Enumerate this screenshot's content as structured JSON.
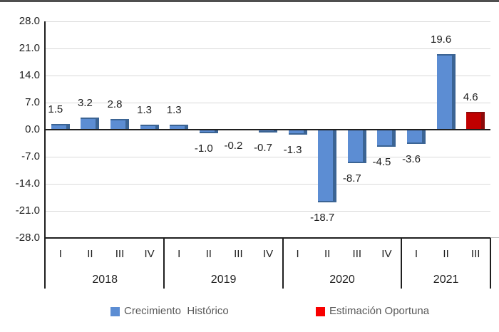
{
  "chart_data": {
    "type": "bar",
    "title": "",
    "xlabel": "",
    "ylabel": "",
    "ylim": [
      -28,
      28
    ],
    "ytick_interval": 7,
    "grid": true,
    "legend_position": "bottom",
    "y_axis": {
      "ticks": [
        {
          "value": 28,
          "label": "28.0"
        },
        {
          "value": 21,
          "label": "21.0"
        },
        {
          "value": 14,
          "label": "14.0"
        },
        {
          "value": 7,
          "label": "7.0"
        },
        {
          "value": 0,
          "label": "0.0"
        },
        {
          "value": -7,
          "label": "-7.0"
        },
        {
          "value": -14,
          "label": "-14.0"
        },
        {
          "value": -21,
          "label": "-21.0"
        },
        {
          "value": -28,
          "label": "-28.0"
        }
      ]
    },
    "groups": [
      {
        "year": "2018",
        "quarters": [
          "I",
          "II",
          "III",
          "IV"
        ]
      },
      {
        "year": "2019",
        "quarters": [
          "I",
          "II",
          "III",
          "IV"
        ]
      },
      {
        "year": "2020",
        "quarters": [
          "I",
          "II",
          "III",
          "IV"
        ]
      },
      {
        "year": "2021",
        "quarters": [
          "I",
          "II",
          "III"
        ]
      }
    ],
    "series": [
      {
        "name": "Crecimiento  Histórico",
        "color": "#5C8DD3",
        "edge_color": "#3B6494",
        "legend_color": "#5C8DD3"
      },
      {
        "name": "Estimación Oportuna",
        "color": "#C00000",
        "edge_color": "#8B0B0B",
        "legend_color": "#F80000"
      }
    ],
    "points": [
      {
        "year": "2018",
        "quarter": "I",
        "value": 1.5,
        "label": "1.5",
        "series": 0
      },
      {
        "year": "2018",
        "quarter": "II",
        "value": 3.2,
        "label": "3.2",
        "series": 0
      },
      {
        "year": "2018",
        "quarter": "III",
        "value": 2.8,
        "label": "2.8",
        "series": 0
      },
      {
        "year": "2018",
        "quarter": "IV",
        "value": 1.3,
        "label": "1.3",
        "series": 0
      },
      {
        "year": "2019",
        "quarter": "I",
        "value": 1.3,
        "label": "1.3",
        "series": 0
      },
      {
        "year": "2019",
        "quarter": "II",
        "value": -1.0,
        "label": "-1.0",
        "series": 0
      },
      {
        "year": "2019",
        "quarter": "III",
        "value": -0.2,
        "label": "-0.2",
        "series": 0
      },
      {
        "year": "2019",
        "quarter": "IV",
        "value": -0.7,
        "label": "-0.7",
        "series": 0
      },
      {
        "year": "2020",
        "quarter": "I",
        "value": -1.3,
        "label": "-1.3",
        "series": 0
      },
      {
        "year": "2020",
        "quarter": "II",
        "value": -18.7,
        "label": "-18.7",
        "series": 0
      },
      {
        "year": "2020",
        "quarter": "III",
        "value": -8.7,
        "label": "-8.7",
        "series": 0
      },
      {
        "year": "2020",
        "quarter": "IV",
        "value": -4.5,
        "label": "-4.5",
        "series": 0
      },
      {
        "year": "2021",
        "quarter": "I",
        "value": -3.6,
        "label": "-3.6",
        "series": 0
      },
      {
        "year": "2021",
        "quarter": "II",
        "value": 19.6,
        "label": "19.6",
        "series": 0
      },
      {
        "year": "2021",
        "quarter": "III",
        "value": 4.6,
        "label": "4.6",
        "series": 1
      }
    ],
    "colors": {
      "gridline": "#D9D9D9",
      "axis": "#1F1F1F",
      "top_rule": "#4F4F4F",
      "axis_extension": "#BFBFBF",
      "legend_text": "#595959"
    }
  }
}
